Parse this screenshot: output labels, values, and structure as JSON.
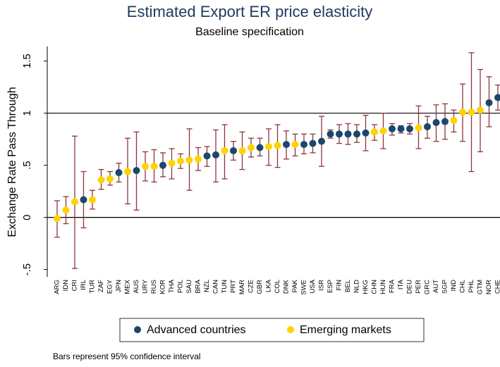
{
  "chart_data": {
    "type": "dot-errorbar",
    "title": "Estimated Export ER price elasticity",
    "subtitle": "Baseline specification",
    "y_label": "Exchange Rate Pass Through",
    "note": "Bars represent 95% confidence interval",
    "categories": [
      "ARG",
      "IDN",
      "CRI",
      "IRL",
      "TUR",
      "ZAF",
      "EGY",
      "JPN",
      "MEX",
      "AUS",
      "URY",
      "RUS",
      "KOR",
      "THA",
      "POL",
      "SAU",
      "BRA",
      "NZL",
      "CAN",
      "TUN",
      "PRT",
      "MAR",
      "CZE",
      "GBR",
      "LKA",
      "COL",
      "DNK",
      "PAK",
      "SWE",
      "USA",
      "ISR",
      "ESP",
      "FIN",
      "BEL",
      "NLD",
      "HKG",
      "CHN",
      "HUN",
      "FRA",
      "ITA",
      "DEU",
      "PER",
      "GRC",
      "AUT",
      "SGP",
      "IND",
      "CHL",
      "PHL",
      "GTM",
      "NOR",
      "CHE"
    ],
    "series": [
      {
        "name": "Advanced countries",
        "color": "#1a476f",
        "values": [
          null,
          null,
          null,
          0.17,
          null,
          null,
          null,
          0.43,
          null,
          0.45,
          null,
          null,
          0.5,
          null,
          null,
          null,
          null,
          0.59,
          0.6,
          null,
          0.64,
          null,
          null,
          0.67,
          null,
          null,
          0.7,
          null,
          0.7,
          0.71,
          0.73,
          0.8,
          0.8,
          0.8,
          0.8,
          0.81,
          null,
          null,
          0.85,
          0.85,
          0.85,
          null,
          0.87,
          0.91,
          0.92,
          null,
          null,
          null,
          null,
          1.1,
          1.15
        ],
        "lower": [
          null,
          null,
          null,
          -0.1,
          null,
          null,
          null,
          0.34,
          null,
          0.07,
          null,
          null,
          0.39,
          null,
          null,
          null,
          null,
          0.49,
          0.34,
          null,
          0.55,
          null,
          null,
          0.59,
          null,
          null,
          0.56,
          null,
          0.61,
          0.62,
          0.49,
          0.76,
          0.71,
          0.7,
          0.72,
          0.64,
          null,
          null,
          0.79,
          0.81,
          0.8,
          null,
          0.76,
          0.73,
          0.75,
          null,
          null,
          null,
          null,
          0.87,
          1.03
        ],
        "upper": [
          null,
          null,
          null,
          0.44,
          null,
          null,
          null,
          0.52,
          null,
          0.82,
          null,
          null,
          0.62,
          null,
          null,
          null,
          null,
          0.68,
          0.84,
          null,
          0.73,
          null,
          null,
          0.76,
          null,
          null,
          0.83,
          null,
          0.8,
          0.8,
          0.97,
          0.84,
          0.89,
          0.9,
          0.89,
          0.98,
          null,
          null,
          0.9,
          0.88,
          0.9,
          null,
          0.97,
          1.08,
          1.09,
          null,
          null,
          null,
          null,
          1.35,
          1.27
        ]
      },
      {
        "name": "Emerging markets",
        "color": "#ffd200",
        "values": [
          -0.01,
          0.07,
          0.15,
          null,
          0.17,
          0.36,
          0.37,
          null,
          0.44,
          null,
          0.49,
          0.49,
          null,
          0.52,
          0.54,
          0.55,
          0.56,
          null,
          null,
          0.64,
          null,
          0.64,
          0.67,
          null,
          0.68,
          0.69,
          null,
          0.7,
          null,
          null,
          null,
          null,
          null,
          null,
          null,
          null,
          0.82,
          0.83,
          null,
          null,
          null,
          0.86,
          null,
          null,
          null,
          0.93,
          1.01,
          1.01,
          1.03,
          null,
          null
        ],
        "lower": [
          -0.19,
          -0.06,
          -0.49,
          null,
          0.08,
          0.27,
          0.31,
          null,
          0.13,
          null,
          0.35,
          0.34,
          null,
          0.37,
          0.47,
          0.26,
          0.45,
          null,
          null,
          0.37,
          null,
          0.46,
          0.58,
          null,
          0.5,
          0.48,
          null,
          0.59,
          null,
          null,
          null,
          null,
          null,
          null,
          null,
          null,
          0.74,
          0.66,
          null,
          null,
          null,
          0.66,
          null,
          null,
          null,
          0.82,
          0.73,
          0.44,
          0.63,
          null,
          null
        ],
        "upper": [
          0.16,
          0.2,
          0.78,
          null,
          0.26,
          0.46,
          0.44,
          null,
          0.76,
          null,
          0.63,
          0.65,
          null,
          0.66,
          0.61,
          0.85,
          0.67,
          null,
          null,
          0.89,
          null,
          0.82,
          0.76,
          null,
          0.85,
          0.89,
          null,
          0.8,
          null,
          null,
          null,
          null,
          null,
          null,
          null,
          null,
          0.89,
          1.0,
          null,
          null,
          null,
          1.07,
          null,
          null,
          null,
          1.03,
          1.28,
          1.58,
          1.42,
          null,
          null
        ]
      }
    ],
    "error_color": "#90353b",
    "reference_lines": [
      0,
      1
    ],
    "ylim": [
      -0.57,
      1.64
    ],
    "yticks": [
      {
        "value": -0.5,
        "label": "-.5"
      },
      0,
      {
        "value": 0.5,
        "label": ".5"
      },
      1,
      1.5
    ],
    "legend": "bottom"
  }
}
